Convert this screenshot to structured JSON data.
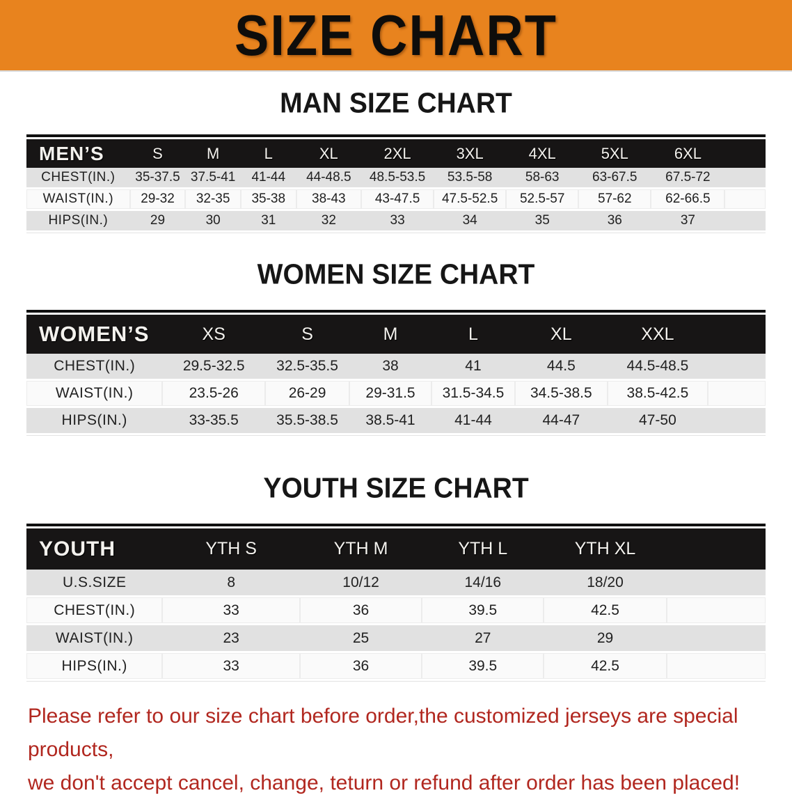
{
  "banner": {
    "title": "SIZE CHART",
    "background_color": "#E8831E"
  },
  "sections": [
    {
      "heading": "MAN SIZE CHART",
      "label": "MEN’S",
      "columns": [
        "S",
        "M",
        "L",
        "XL",
        "2XL",
        "3XL",
        "4XL",
        "5XL",
        "6XL"
      ],
      "rows": [
        {
          "label": "CHEST(IN.)",
          "values": [
            "35-37.5",
            "37.5-41",
            "41-44",
            "44-48.5",
            "48.5-53.5",
            "53.5-58",
            "58-63",
            "63-67.5",
            "67.5-72"
          ]
        },
        {
          "label": "WAIST(IN.)",
          "values": [
            "29-32",
            "32-35",
            "35-38",
            "38-43",
            "43-47.5",
            "47.5-52.5",
            "52.5-57",
            "57-62",
            "62-66.5"
          ]
        },
        {
          "label": "HIPS(IN.)",
          "values": [
            "29",
            "30",
            "31",
            "32",
            "33",
            "34",
            "35",
            "36",
            "37"
          ]
        }
      ]
    },
    {
      "heading": "WOMEN SIZE CHART",
      "label": "WOMEN’S",
      "columns": [
        "XS",
        "S",
        "M",
        "L",
        "XL",
        "XXL"
      ],
      "rows": [
        {
          "label": "CHEST(IN.)",
          "values": [
            "29.5-32.5",
            "32.5-35.5",
            "38",
            "41",
            "44.5",
            "44.5-48.5"
          ]
        },
        {
          "label": "WAIST(IN.)",
          "values": [
            "23.5-26",
            "26-29",
            "29-31.5",
            "31.5-34.5",
            "34.5-38.5",
            "38.5-42.5"
          ]
        },
        {
          "label": "HIPS(IN.)",
          "values": [
            "33-35.5",
            "35.5-38.5",
            "38.5-41",
            "41-44",
            "44-47",
            "47-50"
          ]
        }
      ]
    },
    {
      "heading": "YOUTH SIZE CHART",
      "label": "YOUTH",
      "columns": [
        "YTH S",
        "YTH M",
        "YTH L",
        "YTH XL"
      ],
      "rows": [
        {
          "label": "U.S.SIZE",
          "values": [
            "8",
            "10/12",
            "14/16",
            "18/20"
          ]
        },
        {
          "label": "CHEST(IN.)",
          "values": [
            "33",
            "36",
            "39.5",
            "42.5"
          ]
        },
        {
          "label": "WAIST(IN.)",
          "values": [
            "23",
            "25",
            "27",
            "29"
          ]
        },
        {
          "label": "HIPS(IN.)",
          "values": [
            "33",
            "36",
            "39.5",
            "42.5"
          ]
        }
      ]
    }
  ],
  "footer": {
    "line1": "Please refer to our size chart before order,the customized jerseys are special products,",
    "line2": "we don't accept cancel, change, teturn or refund after order has been placed!",
    "text_color": "#B1271F"
  }
}
